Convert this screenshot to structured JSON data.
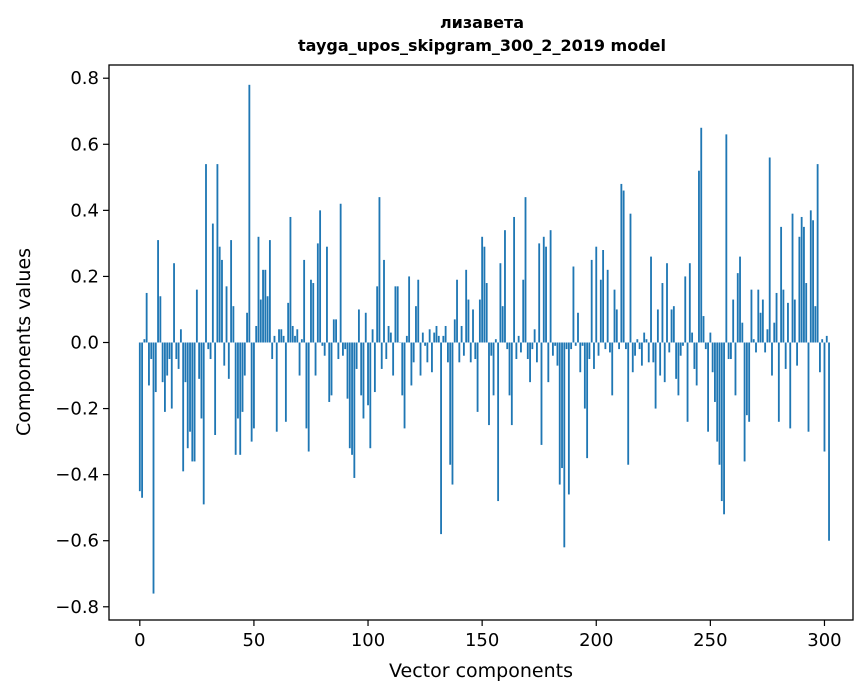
{
  "chart_data": {
    "type": "bar",
    "title": "лизавета",
    "subtitle": "tayga_upos_skipgram_300_2_2019 model",
    "xlabel": "Vector components",
    "ylabel": "Components values",
    "xlim": [
      -13.5,
      312.5
    ],
    "ylim": [
      -0.84,
      0.84
    ],
    "xticks": [
      0,
      50,
      100,
      150,
      200,
      250,
      300
    ],
    "xtick_labels": [
      "0",
      "50",
      "100",
      "150",
      "200",
      "250",
      "300"
    ],
    "yticks": [
      -0.8,
      -0.6,
      -0.4,
      -0.2,
      0.0,
      0.2,
      0.4,
      0.6,
      0.8
    ],
    "ytick_labels": [
      "−0.8",
      "−0.6",
      "−0.4",
      "−0.2",
      "0.0",
      "0.2",
      "0.4",
      "0.6",
      "0.8"
    ],
    "bar_color": "#1f77b4",
    "grid": false,
    "values": [
      -0.45,
      -0.47,
      0.01,
      0.15,
      -0.13,
      -0.05,
      -0.76,
      -0.15,
      0.31,
      0.14,
      -0.12,
      -0.21,
      -0.1,
      -0.05,
      -0.2,
      0.24,
      -0.05,
      -0.08,
      0.04,
      -0.39,
      -0.12,
      -0.32,
      -0.27,
      -0.36,
      -0.36,
      0.16,
      -0.11,
      -0.23,
      -0.49,
      0.54,
      -0.02,
      -0.05,
      0.36,
      -0.28,
      0.54,
      0.29,
      0.25,
      -0.07,
      0.17,
      -0.11,
      0.31,
      0.11,
      -0.34,
      -0.23,
      -0.34,
      -0.21,
      -0.1,
      0.09,
      0.78,
      -0.3,
      -0.26,
      0.05,
      0.32,
      0.13,
      0.22,
      0.22,
      0.14,
      0.31,
      -0.05,
      0.02,
      -0.27,
      0.04,
      0.04,
      0.02,
      -0.24,
      0.12,
      0.38,
      0.05,
      0.02,
      0.04,
      -0.1,
      0.01,
      0.25,
      -0.26,
      -0.33,
      0.19,
      0.18,
      -0.1,
      0.3,
      0.4,
      -0.01,
      -0.04,
      0.29,
      -0.18,
      -0.16,
      0.07,
      0.07,
      -0.05,
      0.42,
      -0.04,
      -0.02,
      -0.17,
      -0.32,
      -0.34,
      -0.41,
      -0.08,
      0.1,
      -0.16,
      -0.23,
      0.09,
      -0.19,
      -0.32,
      0.04,
      -0.15,
      0.17,
      0.44,
      -0.08,
      0.25,
      -0.05,
      0.05,
      0.03,
      -0.1,
      0.17,
      0.17,
      0.0,
      -0.16,
      -0.26,
      0.02,
      0.2,
      -0.13,
      -0.06,
      0.11,
      0.19,
      -0.1,
      0.03,
      -0.01,
      -0.06,
      0.04,
      -0.09,
      0.03,
      0.05,
      0.02,
      -0.58,
      0.02,
      0.05,
      -0.06,
      -0.37,
      -0.43,
      0.07,
      0.19,
      -0.06,
      0.05,
      -0.04,
      0.22,
      0.13,
      -0.06,
      0.1,
      -0.05,
      -0.21,
      0.13,
      0.32,
      0.29,
      0.18,
      -0.25,
      -0.04,
      -0.16,
      0.01,
      -0.48,
      0.24,
      0.11,
      0.34,
      -0.02,
      -0.16,
      -0.25,
      0.38,
      -0.05,
      0.02,
      -0.03,
      0.19,
      0.44,
      -0.05,
      -0.12,
      -0.02,
      0.04,
      -0.06,
      0.3,
      -0.31,
      0.32,
      0.29,
      -0.12,
      0.34,
      -0.04,
      -0.01,
      -0.07,
      -0.43,
      -0.38,
      -0.62,
      -0.02,
      -0.46,
      -0.02,
      0.23,
      -0.01,
      0.09,
      -0.09,
      -0.01,
      -0.2,
      -0.35,
      -0.05,
      0.25,
      -0.08,
      0.29,
      -0.04,
      0.19,
      0.28,
      -0.02,
      0.22,
      -0.03,
      -0.16,
      0.16,
      0.1,
      -0.02,
      0.48,
      0.46,
      -0.02,
      -0.37,
      0.39,
      -0.09,
      -0.04,
      0.01,
      -0.02,
      -0.07,
      0.03,
      0.01,
      -0.06,
      0.26,
      -0.06,
      -0.2,
      0.1,
      -0.1,
      0.18,
      -0.12,
      0.24,
      -0.03,
      0.1,
      0.11,
      -0.11,
      -0.16,
      -0.04,
      -0.01,
      0.2,
      -0.24,
      0.24,
      0.03,
      -0.08,
      -0.13,
      0.52,
      0.65,
      0.08,
      -0.02,
      -0.27,
      0.03,
      -0.09,
      -0.18,
      -0.3,
      -0.37,
      -0.48,
      -0.52,
      0.63,
      -0.05,
      -0.05,
      0.13,
      -0.16,
      0.21,
      0.26,
      0.06,
      -0.36,
      -0.22,
      -0.24,
      0.16,
      0.01,
      -0.03,
      0.16,
      0.09,
      0.13,
      -0.03,
      0.04,
      0.56,
      -0.1,
      0.06,
      0.15,
      -0.24,
      0.35,
      0.16,
      -0.08,
      0.12,
      -0.26,
      0.39,
      0.13,
      -0.07,
      0.32,
      0.38,
      0.35,
      0.18,
      -0.27,
      0.4,
      0.37,
      0.11,
      0.54,
      -0.09,
      0.01,
      -0.33,
      0.02,
      -0.6
    ]
  }
}
